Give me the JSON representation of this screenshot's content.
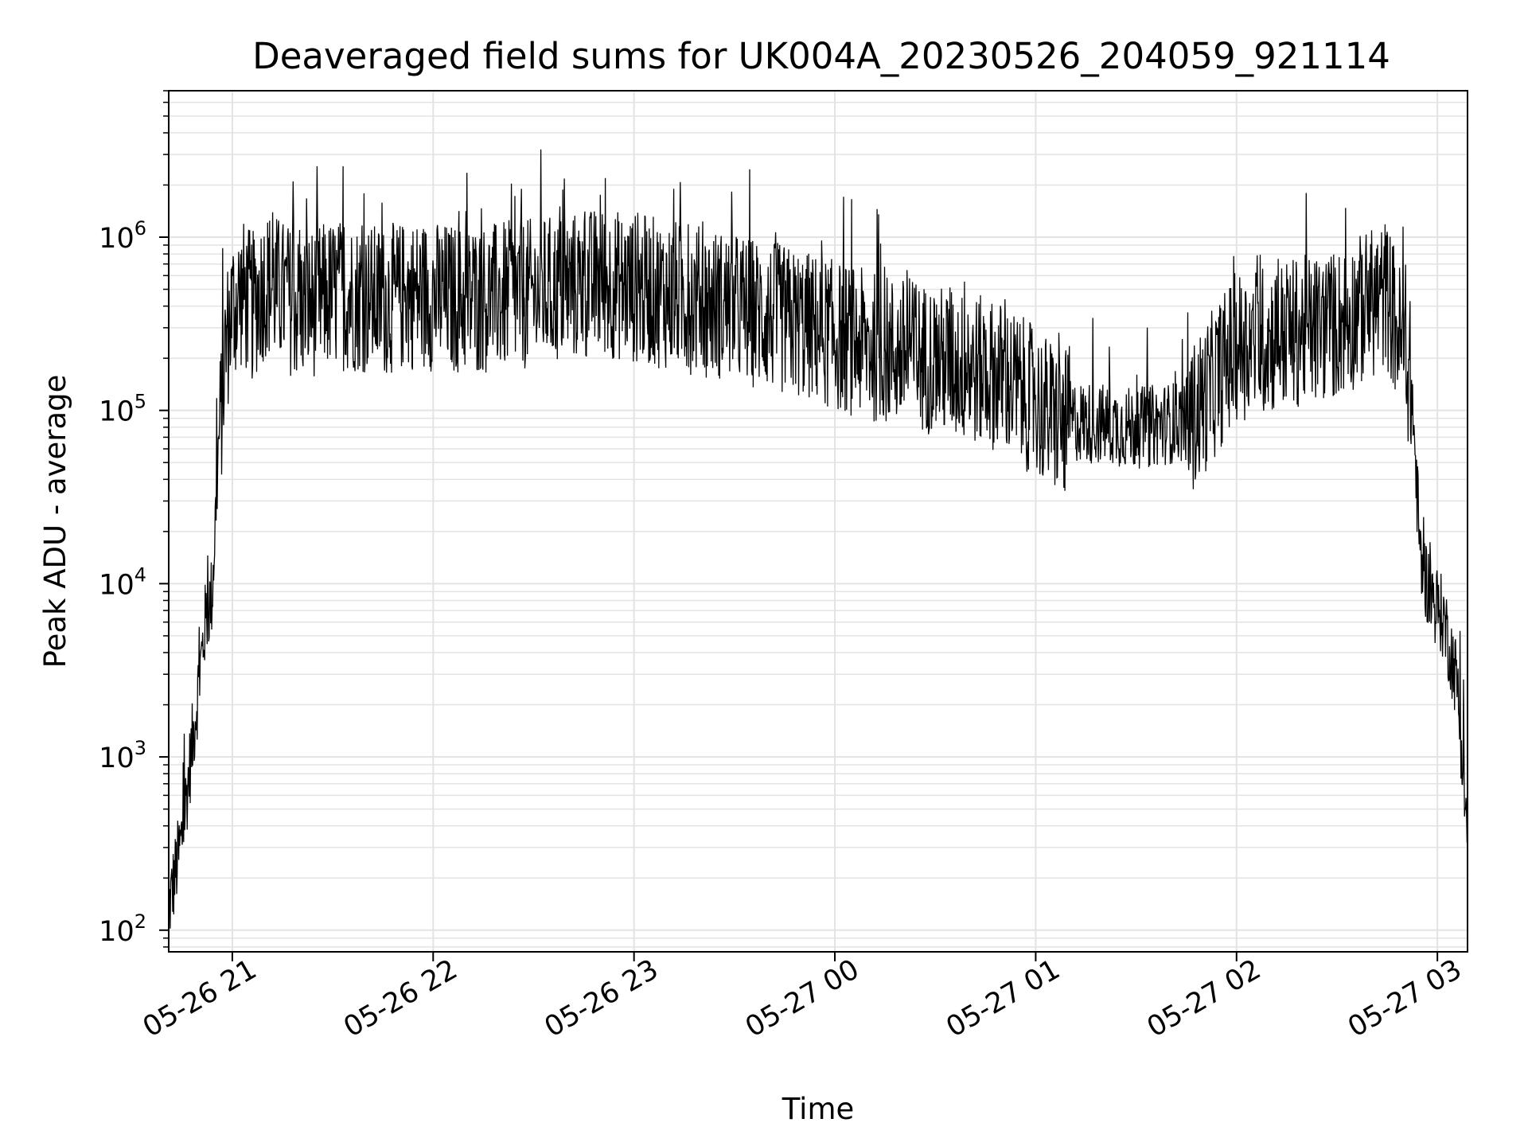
{
  "chart_data": {
    "type": "line",
    "title": "Deaveraged field sums for UK004A_20230526_204059_921114",
    "xlabel": "Time",
    "ylabel": "Peak ADU - average",
    "yscale": "log",
    "grid": true,
    "x_ticks": [
      "05-26 21",
      "05-26 22",
      "05-26 23",
      "05-27 00",
      "05-27 01",
      "05-27 02",
      "05-27 03"
    ],
    "y_ticks": [
      {
        "base": "10",
        "exp": "2"
      },
      {
        "base": "10",
        "exp": "3"
      },
      {
        "base": "10",
        "exp": "4"
      },
      {
        "base": "10",
        "exp": "5"
      },
      {
        "base": "10",
        "exp": "6"
      }
    ],
    "x_range": [
      "2023-05-26 20:41",
      "2023-05-27 03:09"
    ],
    "ylim": [
      75,
      7000000
    ],
    "line_color": "#000000",
    "grid_color": "#e3e3e3",
    "series": [
      {
        "x": [
          "2023-05-26 20:41",
          "2023-05-26 20:45",
          "2023-05-26 20:49",
          "2023-05-26 20:52",
          "2023-05-26 20:54",
          "2023-05-26 20:56",
          "2023-05-26 20:58",
          "2023-05-26 21:00",
          "2023-05-26 21:03",
          "2023-05-26 21:06",
          "2023-05-26 21:10",
          "2023-05-26 21:15",
          "2023-05-26 21:20",
          "2023-05-26 21:30",
          "2023-05-26 21:45",
          "2023-05-26 21:55",
          "2023-05-26 22:10",
          "2023-05-26 22:30",
          "2023-05-26 22:50",
          "2023-05-26 23:10",
          "2023-05-26 23:30",
          "2023-05-26 23:50",
          "2023-05-27 00:10",
          "2023-05-27 00:30",
          "2023-05-27 00:50",
          "2023-05-27 01:10",
          "2023-05-27 01:30",
          "2023-05-27 01:45",
          "2023-05-27 02:00",
          "2023-05-27 02:15",
          "2023-05-27 02:30",
          "2023-05-27 02:45",
          "2023-05-27 02:52",
          "2023-05-27 02:55",
          "2023-05-27 02:58",
          "2023-05-27 03:02",
          "2023-05-27 03:06",
          "2023-05-27 03:09"
        ],
        "y": [
          150,
          400,
          2000,
          7000,
          10000,
          80000,
          300000,
          500000,
          600000,
          500000,
          700000,
          600000,
          500000,
          600000,
          550000,
          600000,
          550000,
          600000,
          700000,
          600000,
          500000,
          400000,
          300000,
          250000,
          200000,
          100000,
          90000,
          100000,
          300000,
          350000,
          400000,
          600000,
          200000,
          15000,
          10000,
          7000,
          3000,
          400
        ]
      }
    ]
  }
}
